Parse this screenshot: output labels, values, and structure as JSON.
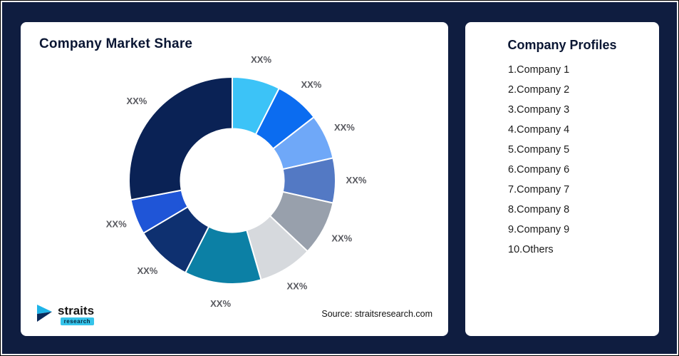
{
  "page": {
    "background": "#0f1d40",
    "border_color": "#ffffff"
  },
  "market_share_card": {
    "title": "Company Market Share",
    "source_note": "Source: straitsresearch.com",
    "logo": {
      "brand": "straits",
      "sub_brand": "research"
    }
  },
  "profiles_card": {
    "title": "Company Profiles",
    "items": [
      "1.Company 1",
      "2.Company 2",
      "3.Company 3",
      "4.Company 4",
      "5.Company 5",
      "6.Company 6",
      "7.Company 7",
      "8.Company 8",
      "9.Company 9",
      "10.Others"
    ]
  },
  "chart_data": {
    "type": "pie",
    "variant": "donut",
    "title": "Company Market Share",
    "legend": "none",
    "start_angle_deg": 0,
    "direction": "clockwise",
    "slice_labels": [
      "XX%",
      "XX%",
      "XX%",
      "XX%",
      "XX%",
      "XX%",
      "XX%",
      "XX%",
      "XX%",
      "XX%"
    ],
    "values_pct_estimated": [
      7.5,
      7,
      7,
      7,
      8.5,
      8.5,
      12,
      9,
      5.5,
      28
    ],
    "colors": [
      "#3cc3f7",
      "#0b6cf0",
      "#6fa8f8",
      "#5379c4",
      "#98a0ac",
      "#d6d9dd",
      "#0c80a5",
      "#0e3070",
      "#1f55d7",
      "#0a2255"
    ],
    "inner_radius_ratio": 0.5,
    "slice_gap_color": "#ffffff"
  }
}
